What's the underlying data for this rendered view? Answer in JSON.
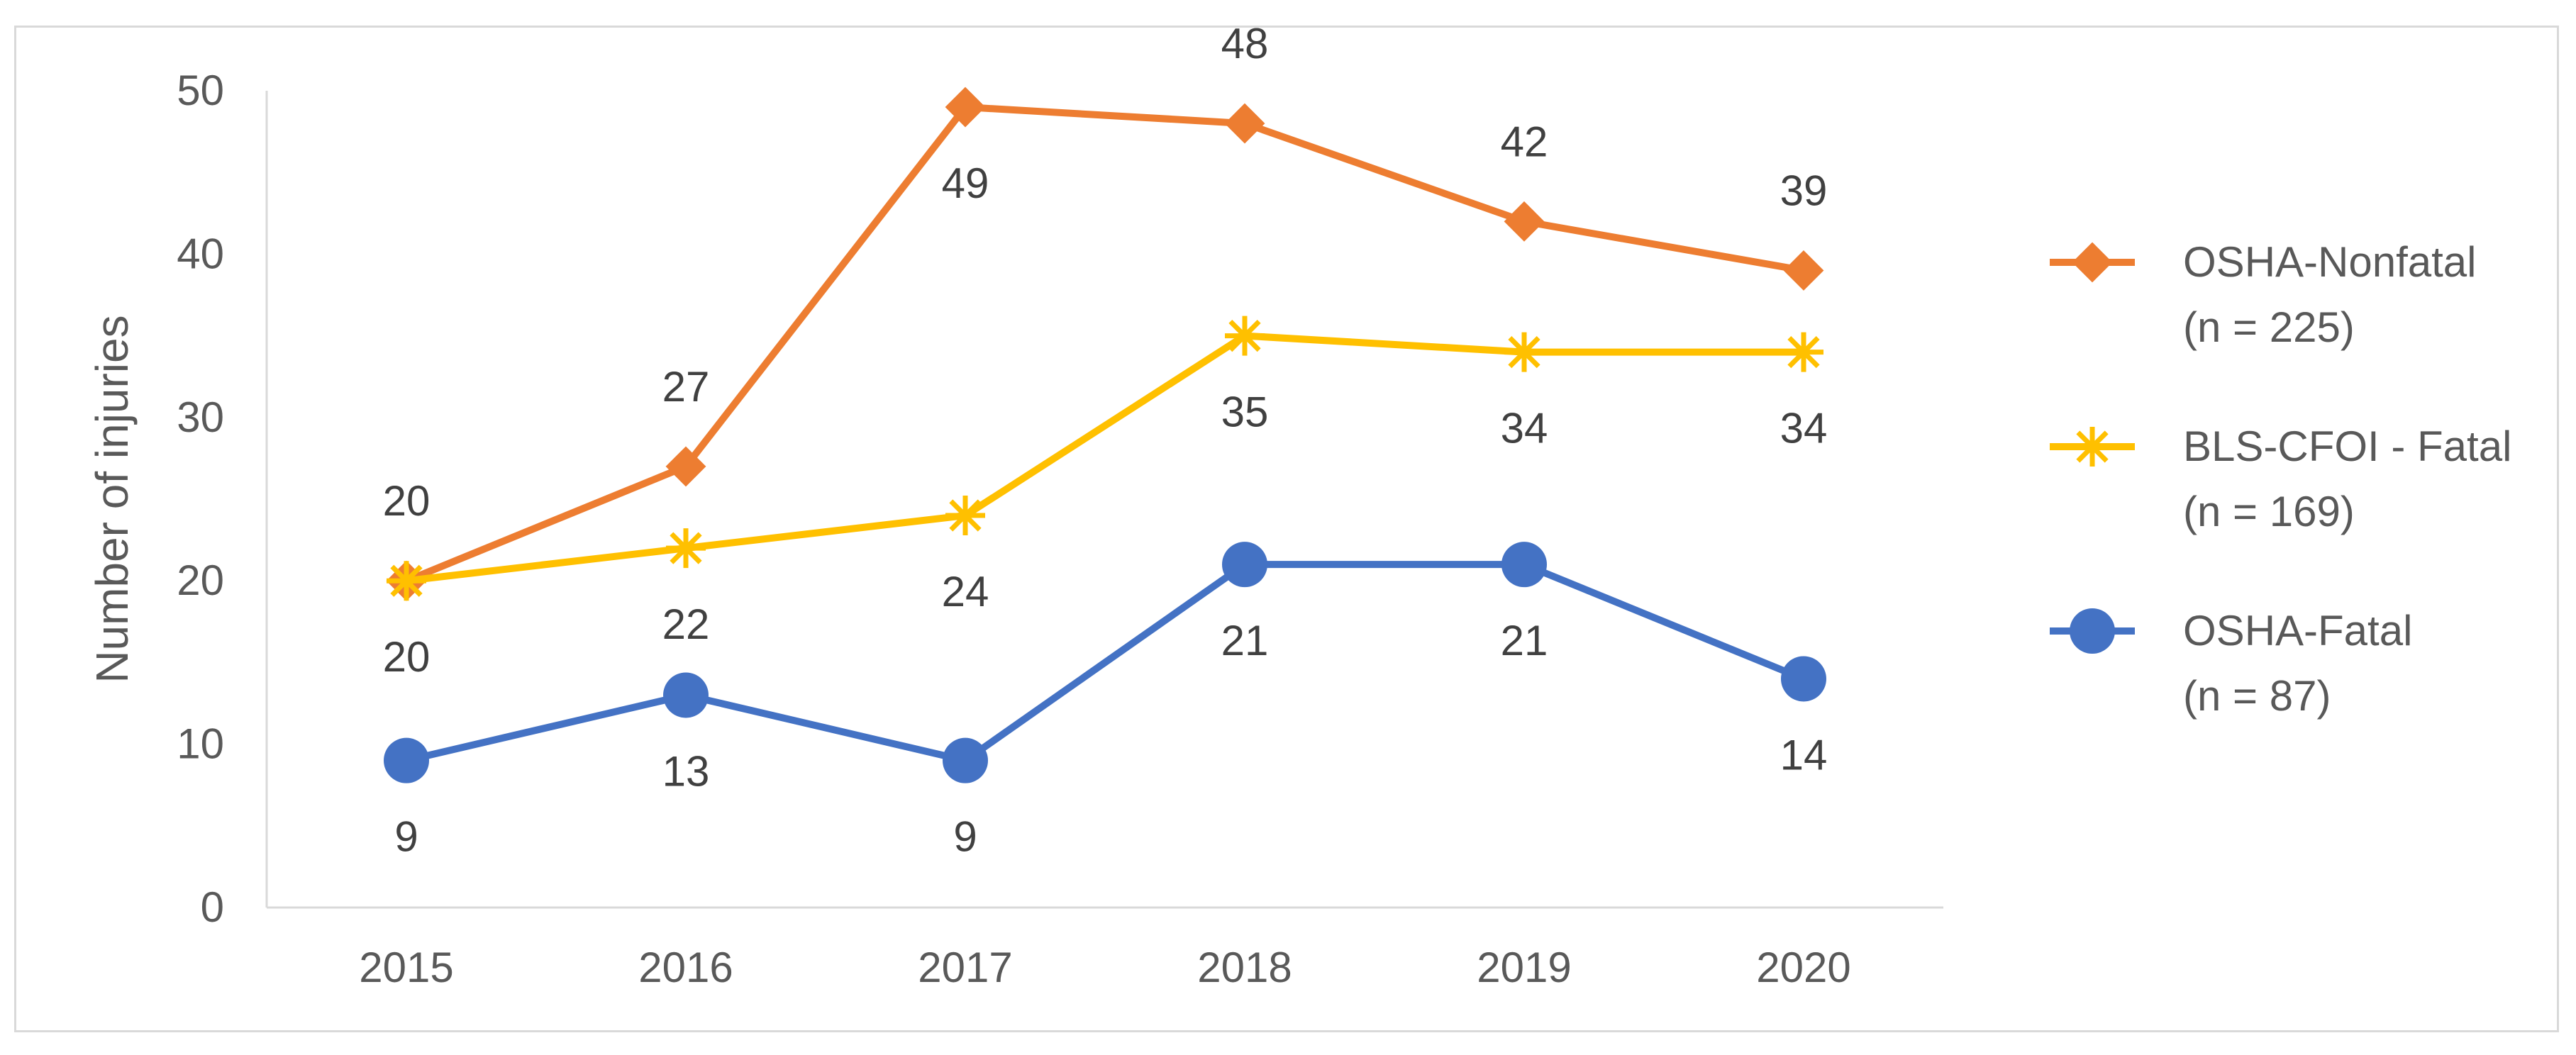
{
  "chart_data": {
    "type": "line",
    "title": "",
    "xlabel": "",
    "ylabel": "Number of injuries",
    "ylim": [
      0,
      50
    ],
    "yticks": [
      0,
      10,
      20,
      30,
      40,
      50
    ],
    "grid": false,
    "legend_position": "right",
    "categories": [
      "2015",
      "2016",
      "2017",
      "2018",
      "2019",
      "2020"
    ],
    "series": [
      {
        "name": "OSHA-Nonfatal",
        "legend_line1": "OSHA-Nonfatal",
        "legend_line2": "(n = 225)",
        "color": "#ED7D31",
        "marker": "diamond",
        "values": [
          20,
          27,
          49,
          48,
          42,
          39
        ],
        "label_positions": [
          "above",
          "above",
          "below",
          "above",
          "above",
          "above"
        ]
      },
      {
        "name": "BLS-CFOI - Fatal",
        "legend_line1": "BLS-CFOI - Fatal",
        "legend_line2": "(n = 169)",
        "color": "#FFC000",
        "marker": "star",
        "values": [
          20,
          22,
          24,
          35,
          34,
          34
        ],
        "label_positions": [
          "below",
          "below",
          "below",
          "below",
          "below",
          "below"
        ]
      },
      {
        "name": "OSHA-Fatal",
        "legend_line1": "OSHA-Fatal",
        "legend_line2": "(n = 87)",
        "color": "#4472C4",
        "marker": "circle",
        "values": [
          9,
          13,
          9,
          21,
          21,
          14
        ],
        "label_positions": [
          "below",
          "below",
          "below",
          "below",
          "below",
          "below"
        ]
      }
    ]
  }
}
